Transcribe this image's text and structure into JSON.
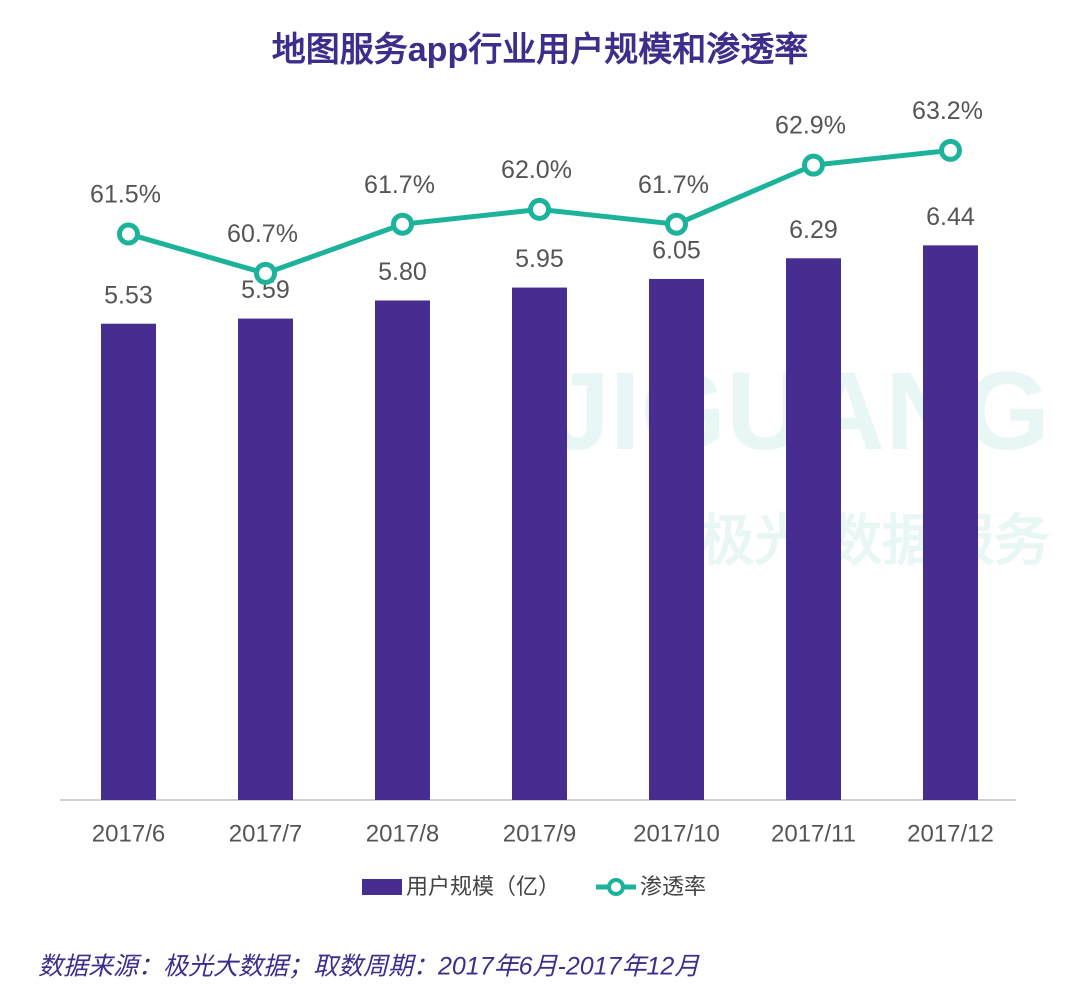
{
  "chart_data": {
    "type": "bar",
    "title": "地图服务app行业用户规模和渗透率",
    "watermark": [
      "JIGUANG",
      "极光 数据服务"
    ],
    "categories": [
      "2017/6",
      "2017/7",
      "2017/8",
      "2017/9",
      "2017/10",
      "2017/11",
      "2017/12"
    ],
    "series": [
      {
        "name": "用户规模（亿）",
        "type": "bar",
        "color": "#472d8f",
        "values": [
          5.53,
          5.59,
          5.8,
          5.95,
          6.05,
          6.29,
          6.44
        ],
        "value_labels": [
          "5.53",
          "5.59",
          "5.80",
          "5.95",
          "6.05",
          "6.29",
          "6.44"
        ]
      },
      {
        "name": "渗透率",
        "type": "line",
        "axis": "y2",
        "color": "#1db39a",
        "values": [
          61.5,
          60.7,
          61.7,
          62.0,
          61.7,
          62.9,
          63.2
        ],
        "value_labels": [
          "61.5%",
          "60.7%",
          "61.7%",
          "62.0%",
          "61.7%",
          "62.9%",
          "63.2%"
        ]
      }
    ],
    "ylim": [
      0,
      8
    ],
    "y2lim": [
      50,
      64
    ],
    "legend": "bottom",
    "source": "数据来源：极光大数据；取数周期：2017年6月-2017年12月"
  }
}
